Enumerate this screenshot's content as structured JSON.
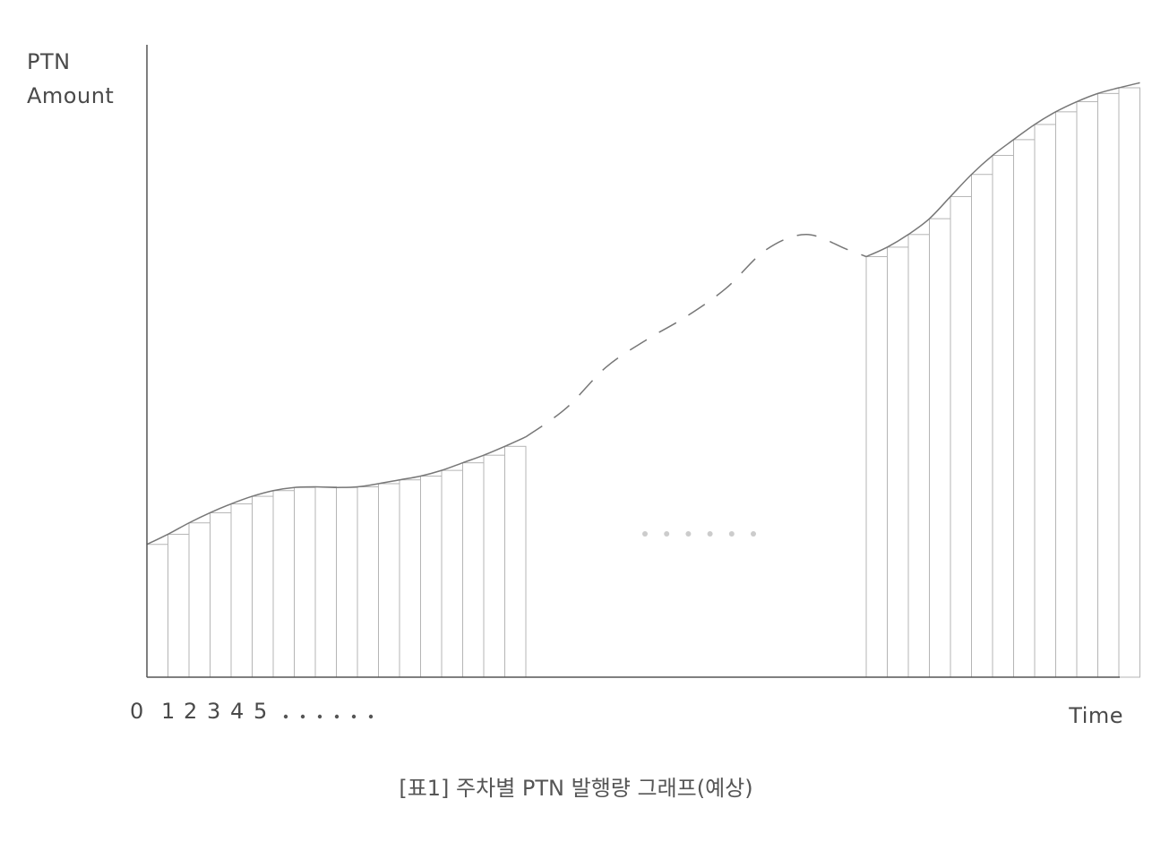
{
  "chart_data": {
    "type": "bar",
    "ylabel_line1": "PTN",
    "ylabel_line2": "Amount",
    "xlabel": "Time",
    "caption": "[표1] 주차별 PTN 발행량 그래프(예상)",
    "x_ticks": [
      "0",
      "1",
      "2",
      "3",
      "4",
      "5"
    ],
    "x_tick_ellipsis": "· · · · · ·",
    "gap_ellipsis": "· · · · · ·",
    "ylim": [
      0,
      100
    ],
    "curve_early": [
      [
        0,
        21.0
      ],
      [
        1,
        22.6
      ],
      [
        2,
        24.4
      ],
      [
        3,
        26.0
      ],
      [
        4,
        27.4
      ],
      [
        5,
        28.6
      ],
      [
        6,
        29.5
      ],
      [
        7,
        30.0
      ],
      [
        8,
        30.1
      ],
      [
        9,
        30.0
      ],
      [
        10,
        30.1
      ],
      [
        11,
        30.6
      ],
      [
        12,
        31.2
      ],
      [
        13,
        31.8
      ],
      [
        14,
        32.7
      ],
      [
        15,
        33.9
      ],
      [
        16,
        35.1
      ],
      [
        17,
        36.5
      ],
      [
        18,
        38.0
      ]
    ],
    "curve_dashed": [
      [
        18,
        38.0
      ],
      [
        20,
        42.5
      ],
      [
        22,
        49.0
      ],
      [
        24,
        53.3
      ],
      [
        26,
        57.0
      ],
      [
        28,
        61.5
      ],
      [
        30,
        67.6
      ],
      [
        32,
        70.0
      ],
      [
        34,
        67.7
      ],
      [
        35,
        66.5
      ]
    ],
    "curve_late": [
      [
        35,
        66.5
      ],
      [
        36,
        68.0
      ],
      [
        37,
        70.0
      ],
      [
        38,
        72.5
      ],
      [
        39,
        76.0
      ],
      [
        40,
        79.5
      ],
      [
        41,
        82.5
      ],
      [
        42,
        85.0
      ],
      [
        43,
        87.4
      ],
      [
        44,
        89.4
      ],
      [
        45,
        91.0
      ],
      [
        46,
        92.3
      ],
      [
        47,
        93.2
      ],
      [
        48,
        94.0
      ]
    ],
    "bars_early": [
      21.0,
      22.6,
      24.4,
      26.0,
      27.4,
      28.6,
      29.5,
      30.0,
      30.1,
      30.0,
      30.1,
      30.6,
      31.2,
      31.8,
      32.7,
      33.9,
      35.1,
      36.5
    ],
    "bars_late": [
      66.5,
      68.0,
      70.0,
      72.5,
      76.0,
      79.5,
      82.5,
      85.0,
      87.4,
      89.4,
      91.0,
      92.3,
      93.2
    ],
    "colors": {
      "axis": "#555555",
      "curve": "#777777",
      "bar_stroke": "#b5b5b5",
      "ellipsis": "#cccccc"
    }
  }
}
